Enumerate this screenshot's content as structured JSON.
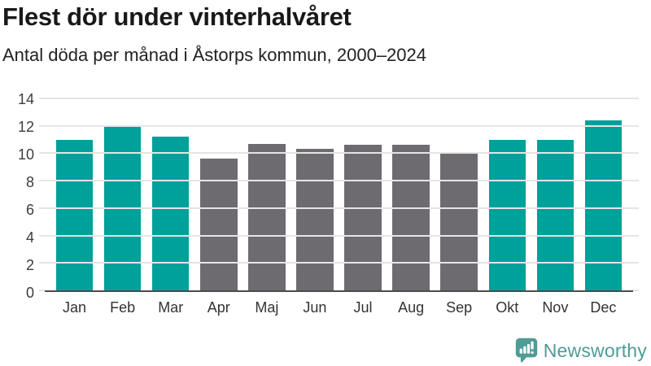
{
  "header": {
    "title": "Flest dör under vinterhalvåret",
    "subtitle": "Antal döda per månad i Åstorps kommun, 2000–2024"
  },
  "chart_data": {
    "type": "bar",
    "title": "Flest dör under vinterhalvåret",
    "subtitle": "Antal döda per månad i Åstorps kommun, 2000–2024",
    "categories": [
      "Jan",
      "Feb",
      "Mar",
      "Apr",
      "Maj",
      "Jun",
      "Jul",
      "Aug",
      "Sep",
      "Okt",
      "Nov",
      "Dec"
    ],
    "values": [
      11.0,
      11.9,
      11.2,
      9.6,
      10.7,
      10.3,
      10.6,
      10.6,
      10.0,
      11.0,
      11.0,
      12.4
    ],
    "highlight": [
      true,
      true,
      true,
      false,
      false,
      false,
      false,
      false,
      false,
      true,
      true,
      true
    ],
    "colors": {
      "highlight": "#00a09b",
      "default": "#6d6b70",
      "gridline": "#e5e5e5",
      "axis_line": "#4c4c4c",
      "tick_label": "#3d3d3d"
    },
    "xlabel": "",
    "ylabel": "",
    "ylim": [
      0,
      14
    ],
    "yticks": [
      0,
      2,
      4,
      6,
      8,
      10,
      12,
      14
    ],
    "grid": "horizontal",
    "legend": "none"
  },
  "footer": {
    "brand": "Newsworthy",
    "brand_color": "#4e9c95"
  }
}
